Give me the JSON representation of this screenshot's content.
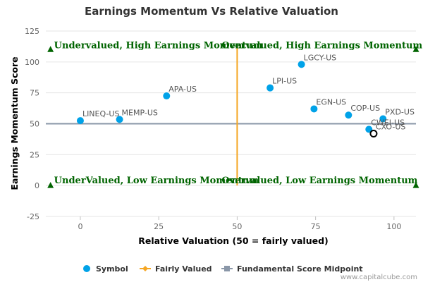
{
  "chart_data": {
    "type": "scatter",
    "title": "Earnings Momentum Vs Relative Valuation",
    "xlabel": "Relative Valuation (50 = fairly valued)",
    "ylabel": "Earnings Momentum Score",
    "xlim": [
      -11,
      107
    ],
    "ylim": [
      -25,
      125
    ],
    "xticks": [
      0,
      25,
      50,
      75,
      100
    ],
    "yticks": [
      -25,
      0,
      25,
      50,
      75,
      100,
      125
    ],
    "grid": "horizontal",
    "series": [
      {
        "name": "Symbol",
        "color": "#00a2e8",
        "points": [
          {
            "label": "LINEQ-US",
            "x": 0,
            "y": 52.5
          },
          {
            "label": "MEMP-US",
            "x": 12.5,
            "y": 53.5
          },
          {
            "label": "APA-US",
            "x": 27.5,
            "y": 72.5
          },
          {
            "label": "LPI-US",
            "x": 60.5,
            "y": 79
          },
          {
            "label": "LGCY-US",
            "x": 70.5,
            "y": 98
          },
          {
            "label": "EGN-US",
            "x": 74.5,
            "y": 62
          },
          {
            "label": "COP-US",
            "x": 85.5,
            "y": 57
          },
          {
            "label": "PXD-US",
            "x": 96.5,
            "y": 54
          },
          {
            "label": "CWEI-US",
            "x": 92,
            "y": 45.5
          },
          {
            "label": "CXO-US",
            "x": 93.5,
            "y": 42,
            "highlight": true
          }
        ]
      },
      {
        "name": "Fairly Valued",
        "color": "#f5a623",
        "x": 50
      },
      {
        "name": "Fundamental Score Midpoint",
        "color": "#8a97a8",
        "y": 50
      }
    ],
    "quadrants": [
      {
        "text": "Undervalued, High Earnings Momentum",
        "pos": "tl"
      },
      {
        "text": "Overvalued, High Earnings Momentum",
        "pos": "tr"
      },
      {
        "text": "UnderValued, Low Earnings Momentum",
        "pos": "bl"
      },
      {
        "text": "Overvalued, Low Earnings Momentum",
        "pos": "br"
      }
    ],
    "quadrant_color": "#006400",
    "legend": {
      "placement": "bottom"
    },
    "credit": "www.capitalcube.com"
  }
}
